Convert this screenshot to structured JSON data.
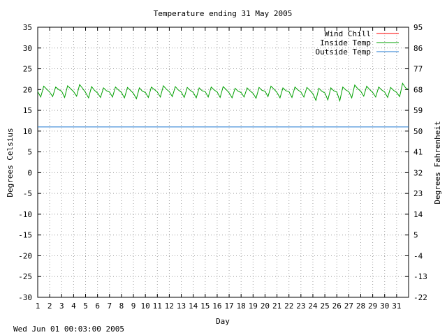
{
  "footer_timestamp": "Wed Jun 01 00:03:00 2005",
  "colors": {
    "wind_chill": "#ff0000",
    "inside_temp": "#00a000",
    "outside_temp": "#1f78d0",
    "grid": "#a0a0a0",
    "axis": "#000000"
  },
  "chart_data": {
    "type": "line",
    "title": "Temperature ending 31 May 2005",
    "xlabel": "Day",
    "ylabel": "Degrees Celsius",
    "y2label": "Degrees Fahrenheit",
    "xlim": [
      1,
      32
    ],
    "ylim": [
      -30,
      35
    ],
    "x_ticks": [
      "1",
      "2",
      "3",
      "4",
      "5",
      "6",
      "7",
      "8",
      "9",
      "10",
      "11",
      "12",
      "13",
      "14",
      "15",
      "16",
      "17",
      "18",
      "19",
      "20",
      "21",
      "22",
      "23",
      "24",
      "25",
      "26",
      "27",
      "28",
      "29",
      "30",
      "31"
    ],
    "y_ticks": [
      "35",
      "30",
      "25",
      "20",
      "15",
      "10",
      "5",
      "0",
      "-5",
      "-10",
      "-15",
      "-20",
      "-25",
      "-30"
    ],
    "y2_ticks": [
      "95",
      "86",
      "77",
      "68",
      "59",
      "50",
      "41",
      "32",
      "23",
      "14",
      "5",
      "-4",
      "-13",
      "-22"
    ],
    "grid": true,
    "legend_position": "top-right",
    "series": [
      {
        "name": "Wind Chill",
        "x": [],
        "y": []
      },
      {
        "name": "Inside Temp",
        "x": [
          1,
          1.25,
          1.5,
          1.75,
          2,
          2.25,
          2.5,
          2.75,
          3,
          3.25,
          3.5,
          3.75,
          4,
          4.25,
          4.5,
          4.75,
          5,
          5.25,
          5.5,
          5.75,
          6,
          6.25,
          6.5,
          6.75,
          7,
          7.25,
          7.5,
          7.75,
          8,
          8.25,
          8.5,
          8.75,
          9,
          9.25,
          9.5,
          9.75,
          10,
          10.25,
          10.5,
          10.75,
          11,
          11.25,
          11.5,
          11.75,
          12,
          12.25,
          12.5,
          12.75,
          13,
          13.25,
          13.5,
          13.75,
          14,
          14.25,
          14.5,
          14.75,
          15,
          15.25,
          15.5,
          15.75,
          16,
          16.25,
          16.5,
          16.75,
          17,
          17.25,
          17.5,
          17.75,
          18,
          18.25,
          18.5,
          18.75,
          19,
          19.25,
          19.5,
          19.75,
          20,
          20.25,
          20.5,
          20.75,
          21,
          21.25,
          21.5,
          21.75,
          22,
          22.25,
          22.5,
          22.75,
          23,
          23.25,
          23.5,
          23.75,
          24,
          24.25,
          24.5,
          24.75,
          25,
          25.25,
          25.5,
          25.75,
          26,
          26.25,
          26.5,
          26.75,
          27,
          27.25,
          27.5,
          27.75,
          28,
          28.25,
          28.5,
          28.75,
          29,
          29.25,
          29.5,
          29.75,
          30,
          30.25,
          30.5,
          30.75,
          31,
          31.25,
          31.5,
          31.75,
          32
        ],
        "y": [
          19.5,
          18.2,
          20.8,
          20.1,
          19.4,
          18.3,
          20.6,
          20.0,
          19.6,
          18.1,
          20.9,
          20.2,
          19.5,
          18.4,
          21.2,
          20.3,
          19.3,
          18.0,
          20.7,
          19.8,
          19.2,
          18.1,
          20.4,
          19.7,
          19.4,
          18.2,
          20.6,
          19.9,
          19.3,
          18.0,
          20.5,
          19.8,
          19.1,
          17.8,
          20.4,
          19.6,
          19.3,
          18.1,
          20.6,
          20.0,
          19.4,
          18.2,
          20.9,
          20.1,
          19.5,
          18.3,
          20.7,
          19.9,
          19.4,
          18.1,
          20.5,
          19.8,
          19.3,
          18.0,
          20.4,
          19.7,
          19.5,
          18.2,
          20.6,
          19.9,
          19.4,
          18.1,
          20.7,
          20.0,
          19.2,
          18.0,
          20.3,
          19.6,
          19.3,
          18.2,
          20.4,
          19.7,
          19.1,
          17.9,
          20.5,
          19.8,
          19.6,
          18.3,
          20.8,
          20.1,
          19.3,
          18.0,
          20.4,
          19.7,
          19.5,
          18.1,
          20.6,
          19.9,
          19.4,
          18.2,
          20.5,
          19.8,
          19.0,
          17.4,
          20.3,
          19.6,
          19.2,
          17.5,
          20.4,
          19.7,
          19.4,
          17.3,
          20.6,
          19.9,
          19.5,
          18.0,
          21.1,
          20.2,
          19.6,
          18.4,
          20.8,
          20.0,
          19.3,
          18.2,
          20.6,
          19.9,
          19.4,
          18.1,
          20.5,
          19.8,
          19.3,
          18.3,
          21.5,
          20.4,
          20.0
        ]
      },
      {
        "name": "Outside Temp",
        "x": [
          1,
          32
        ],
        "y": [
          11.0,
          11.0
        ]
      }
    ]
  }
}
